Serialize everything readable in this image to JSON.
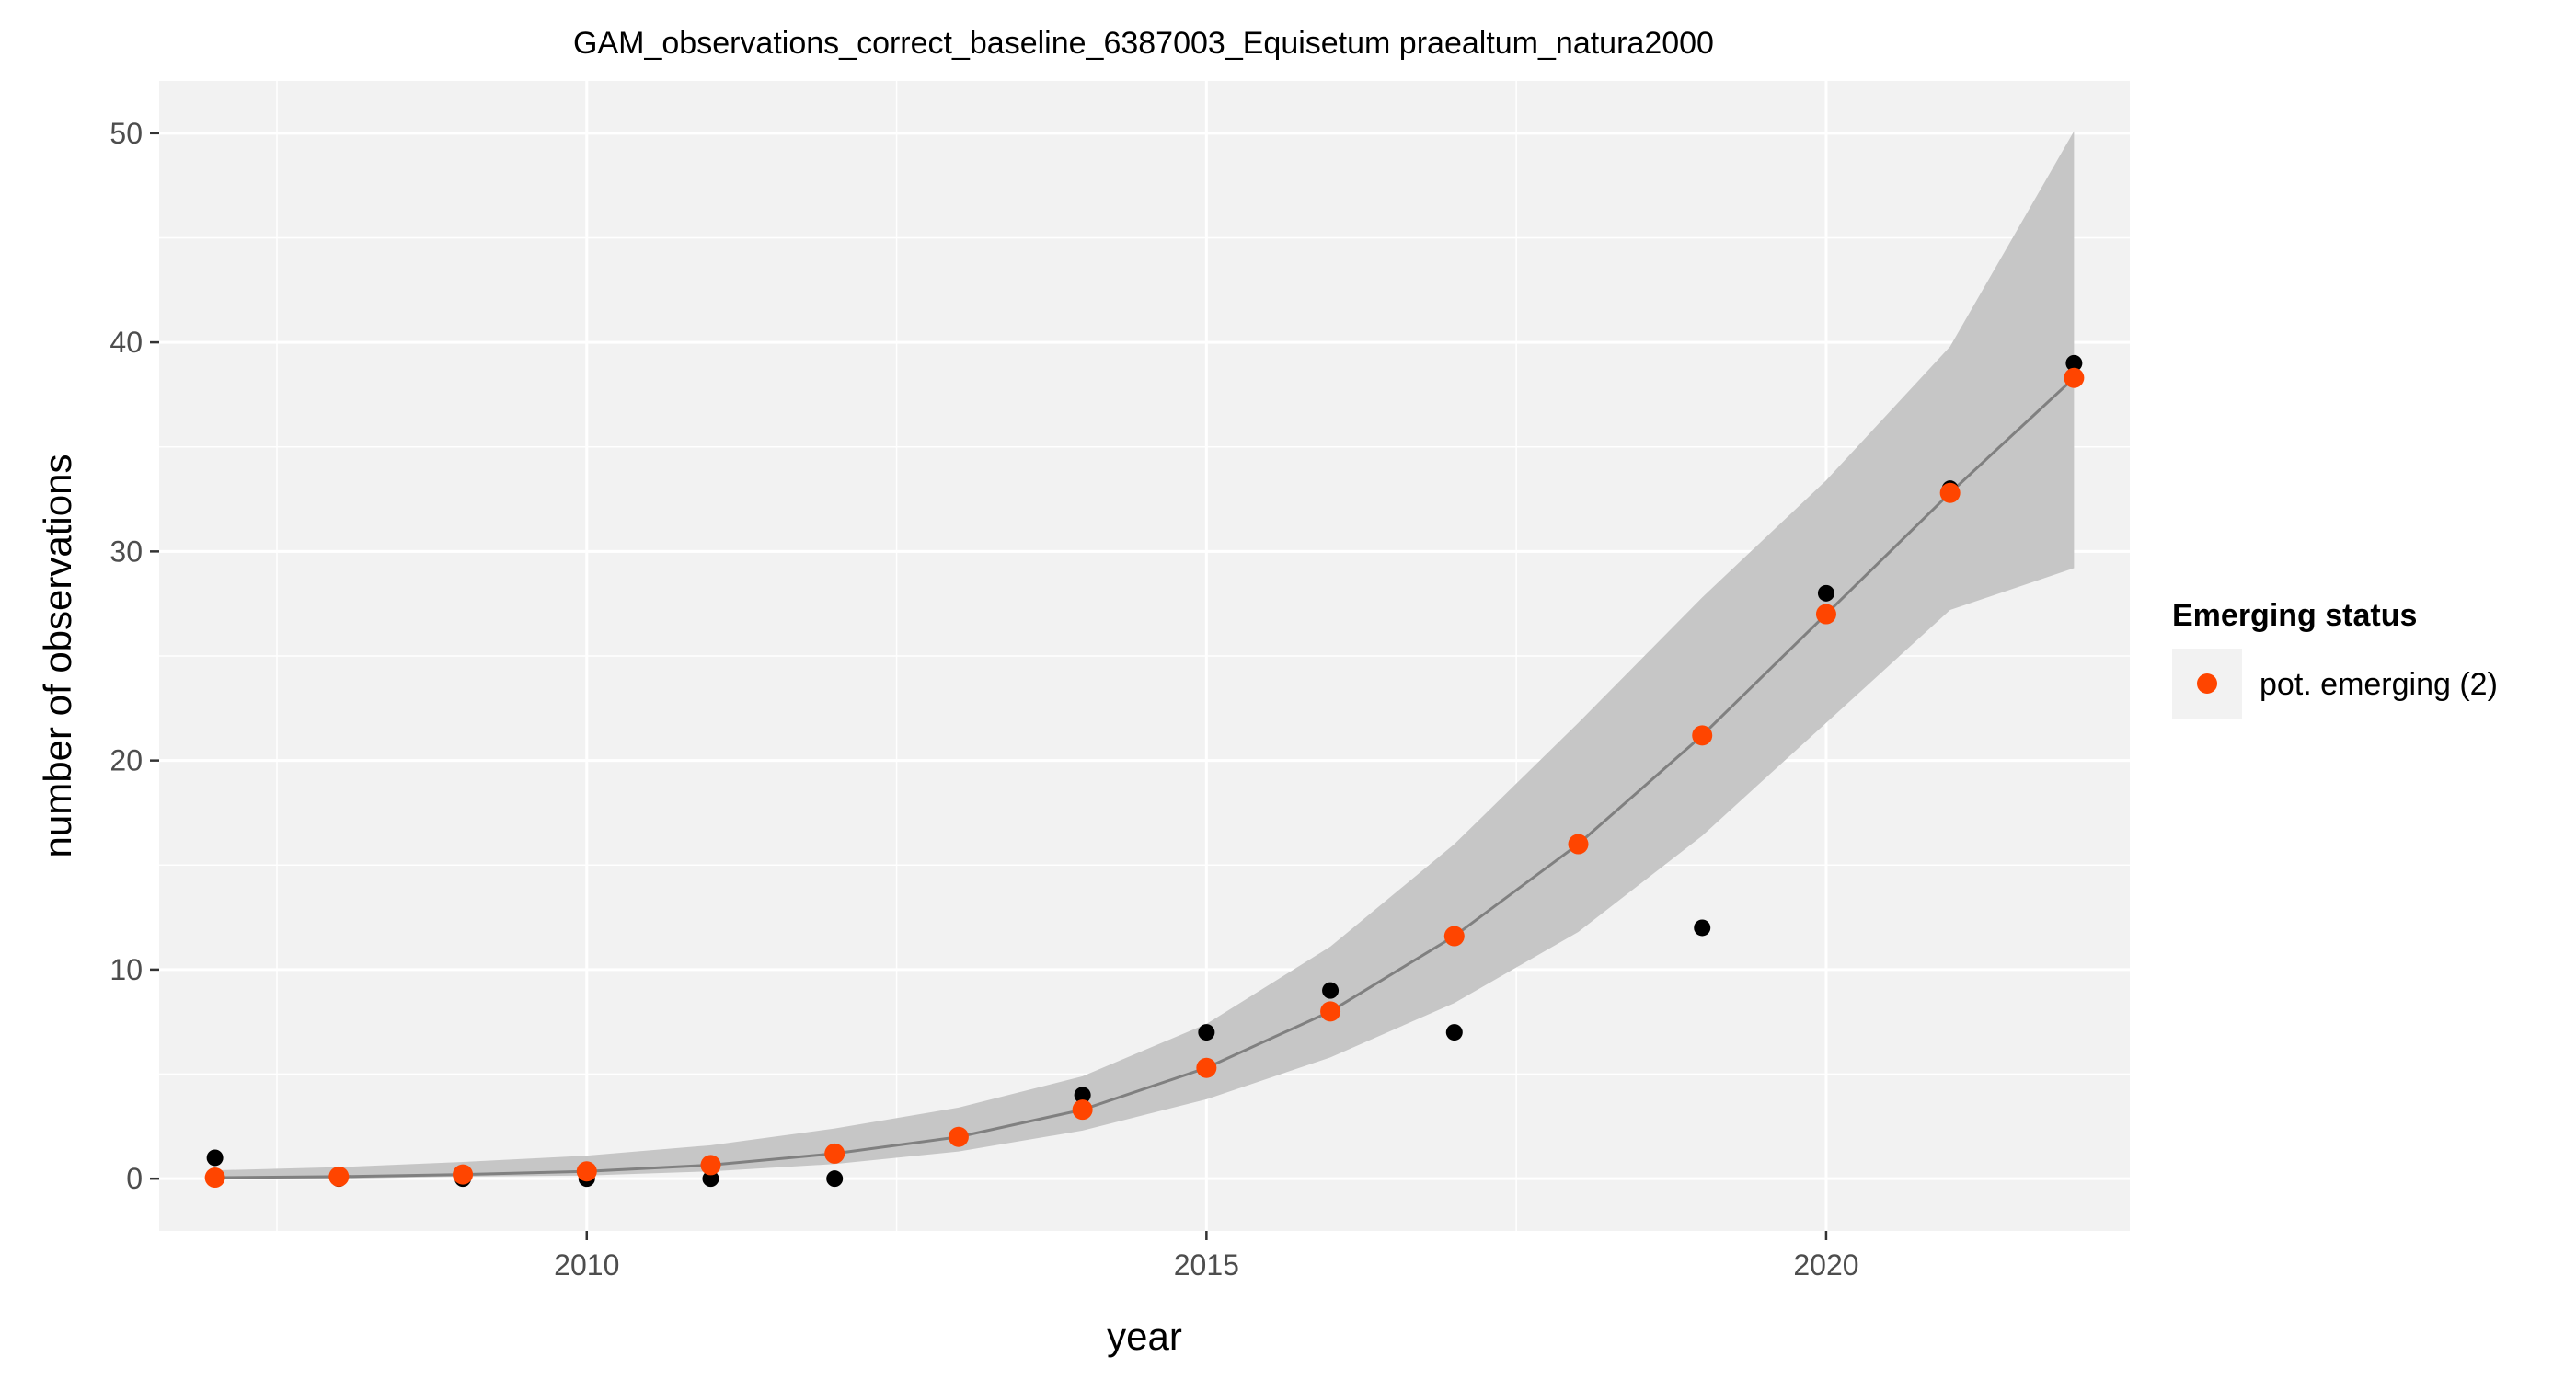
{
  "chart_data": {
    "type": "line",
    "title": "GAM_observations_correct_baseline_6387003_Equisetum praealtum_natura2000",
    "xlabel": "year",
    "ylabel": "number of observations",
    "xlim": [
      2006.55,
      2022.45
    ],
    "ylim": [
      -2.5,
      52.5
    ],
    "x_ticks": [
      2010,
      2015,
      2020
    ],
    "y_ticks": [
      0,
      10,
      20,
      30,
      40,
      50
    ],
    "grid": true,
    "colors": {
      "panel_bg": "#f2f2f2",
      "grid": "#ffffff",
      "ribbon": "#c6c6c6",
      "fit_line": "#808080",
      "observed": "#000000",
      "emerging": "#ff4500"
    },
    "legend": {
      "title": "Emerging status",
      "entries": [
        "pot. emerging (2)"
      ],
      "placement": "right"
    },
    "series": [
      {
        "kind": "observed",
        "x": [
          2007,
          2008,
          2009,
          2010,
          2011,
          2012,
          2013,
          2014,
          2015,
          2016,
          2017,
          2018,
          2019,
          2020,
          2021,
          2022
        ],
        "values": [
          1,
          0,
          0,
          0,
          0,
          0,
          2,
          4,
          7,
          9,
          7,
          16,
          12,
          28,
          33,
          39
        ]
      },
      {
        "kind": "fit",
        "x": [
          2007,
          2008,
          2009,
          2010,
          2011,
          2012,
          2013,
          2014,
          2015,
          2016,
          2017,
          2018,
          2019,
          2020,
          2021,
          2022
        ],
        "values": [
          0.05,
          0.1,
          0.2,
          0.35,
          0.65,
          1.2,
          2.0,
          3.3,
          5.3,
          8.0,
          11.6,
          16.0,
          21.2,
          27.0,
          32.8,
          38.3
        ],
        "lower": [
          0.0,
          0.0,
          0.1,
          0.15,
          0.35,
          0.7,
          1.3,
          2.3,
          3.8,
          5.8,
          8.4,
          11.8,
          16.4,
          21.8,
          27.2,
          29.2
        ],
        "upper": [
          0.4,
          0.55,
          0.8,
          1.1,
          1.6,
          2.4,
          3.4,
          4.9,
          7.4,
          11.1,
          16.0,
          21.8,
          27.8,
          33.4,
          39.8,
          50.1
        ]
      },
      {
        "name": "pot. emerging (2)",
        "kind": "emerging",
        "x": [
          2007,
          2008,
          2009,
          2010,
          2011,
          2012,
          2013,
          2014,
          2015,
          2016,
          2017,
          2018,
          2019,
          2020,
          2021,
          2022
        ],
        "values": [
          0.05,
          0.1,
          0.2,
          0.35,
          0.65,
          1.2,
          2.0,
          3.3,
          5.3,
          8.0,
          11.6,
          16.0,
          21.2,
          27.0,
          32.8,
          38.3
        ]
      }
    ]
  }
}
